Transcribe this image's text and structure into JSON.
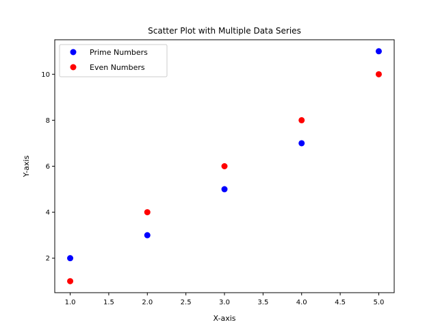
{
  "chart_data": {
    "type": "scatter",
    "title": "Scatter Plot with Multiple Data Series",
    "xlabel": "X-axis",
    "ylabel": "Y-axis",
    "xlim": [
      0.8,
      5.2
    ],
    "ylim": [
      0.5,
      11.5
    ],
    "x_ticks": [
      1.0,
      1.5,
      2.0,
      2.5,
      3.0,
      3.5,
      4.0,
      4.5,
      5.0
    ],
    "x_tick_labels": [
      "1.0",
      "1.5",
      "2.0",
      "2.5",
      "3.0",
      "3.5",
      "4.0",
      "4.5",
      "5.0"
    ],
    "y_ticks": [
      2,
      4,
      6,
      8,
      10
    ],
    "y_tick_labels": [
      "2",
      "4",
      "6",
      "8",
      "10"
    ],
    "grid": false,
    "legend_position": "upper-left",
    "series": [
      {
        "name": "Prime Numbers",
        "color": "#0000ff",
        "x": [
          1,
          2,
          3,
          4,
          5
        ],
        "y": [
          2,
          3,
          5,
          7,
          11
        ]
      },
      {
        "name": "Even Numbers",
        "color": "#ff0000",
        "x": [
          1,
          2,
          3,
          4,
          5
        ],
        "y": [
          1,
          4,
          6,
          8,
          10
        ]
      }
    ]
  }
}
